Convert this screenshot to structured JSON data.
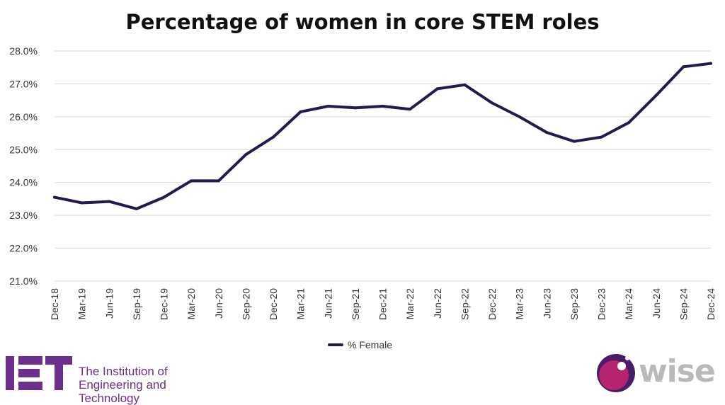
{
  "title": "Percentage of women in core STEM roles",
  "legend_label": "% Female",
  "logos": {
    "iet_line1": "The Institution of",
    "iet_line2": "Engineering and Technology",
    "wise": "wise"
  },
  "colors": {
    "series": "#221b4f",
    "grid": "#d9d9d9",
    "iet_purple": "#6c2f8c",
    "wise_magenta": "#b5246f",
    "wise_purple": "#4a1d6b",
    "wise_grey": "#b9b9b9"
  },
  "chart_data": {
    "type": "line",
    "title": "Percentage of women in core STEM roles",
    "x": [
      "Dec-18",
      "Mar-19",
      "Jun-19",
      "Sep-19",
      "Dec-19",
      "Mar-20",
      "Jun-20",
      "Sep-20",
      "Dec-20",
      "Mar-21",
      "Jun-21",
      "Sep-21",
      "Dec-21",
      "Mar-22",
      "Jun-22",
      "Sep-22",
      "Dec-22",
      "Mar-23",
      "Jun-23",
      "Sep-23",
      "Dec-23",
      "Mar-24",
      "Jun-24",
      "Sep-24",
      "Dec-24"
    ],
    "series": [
      {
        "name": "% Female",
        "values": [
          23.55,
          23.38,
          23.42,
          23.2,
          23.55,
          24.05,
          24.05,
          24.85,
          25.38,
          26.15,
          26.32,
          26.27,
          26.32,
          26.23,
          26.85,
          26.97,
          26.42,
          26.0,
          25.52,
          25.25,
          25.38,
          25.82,
          26.65,
          27.52,
          27.62
        ]
      }
    ],
    "yticks": [
      "21.0%",
      "22.0%",
      "23.0%",
      "24.0%",
      "25.0%",
      "26.0%",
      "27.0%",
      "28.0%"
    ],
    "ylim": [
      21.0,
      28.0
    ],
    "grid": true,
    "legend": "bottom-center"
  }
}
